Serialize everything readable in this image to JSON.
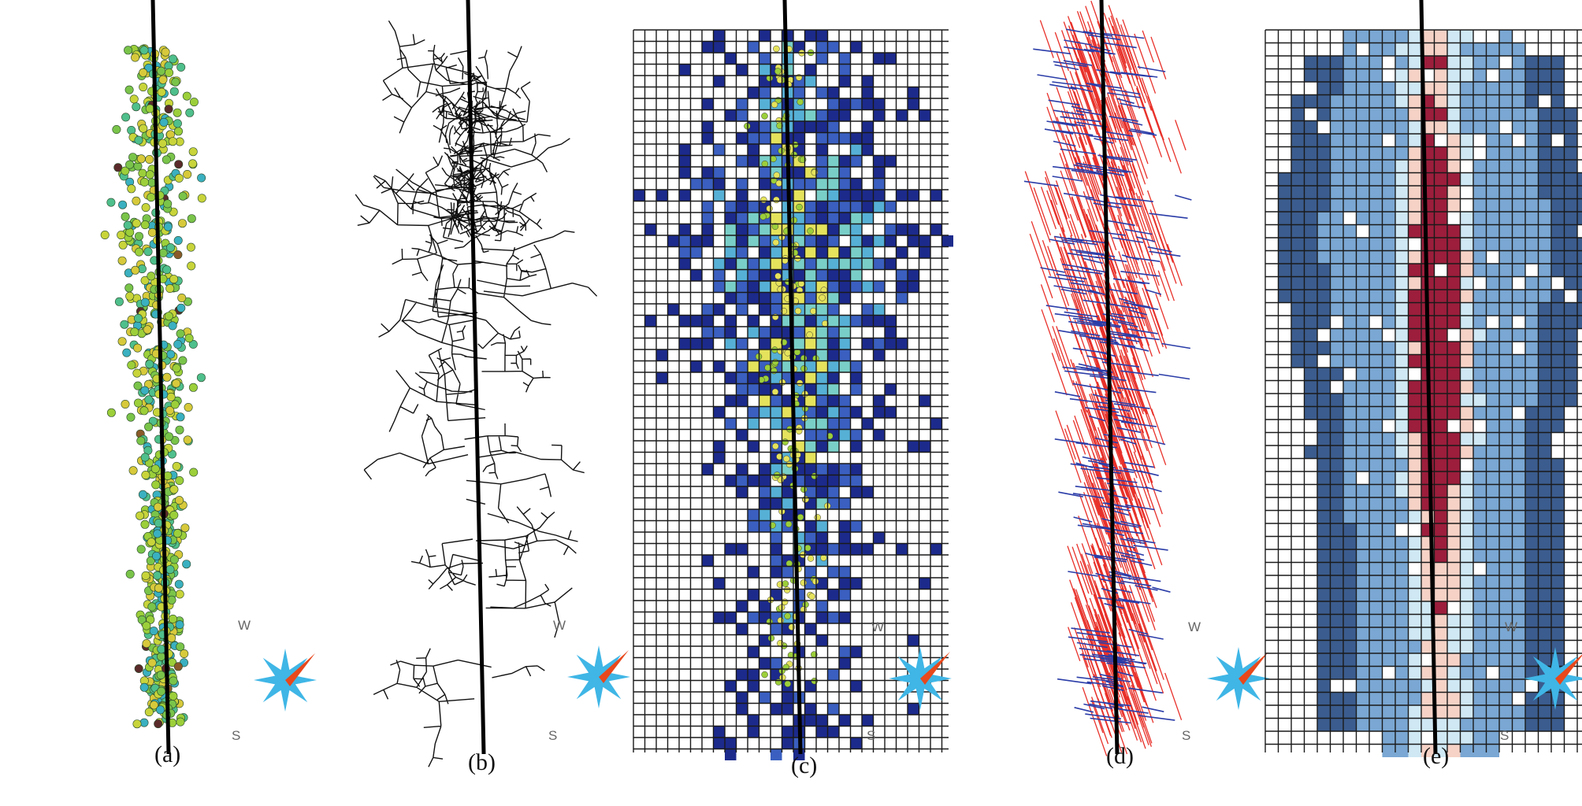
{
  "figure": {
    "panels": [
      {
        "id": "a",
        "label": "(a)",
        "content": "microseismic-events"
      },
      {
        "id": "b",
        "label": "(b)",
        "content": "fracture-network"
      },
      {
        "id": "c",
        "label": "(c)",
        "content": "event-density-grid"
      },
      {
        "id": "d",
        "label": "(d)",
        "content": "fracture-orientation-segments"
      },
      {
        "id": "e",
        "label": "(e)",
        "content": "stimulated-volume-grid"
      }
    ],
    "compass": {
      "west_label": "W",
      "south_label": "S"
    },
    "colors": {
      "compass_blue": "#3fb6e6",
      "compass_needle": "#e8481c",
      "wellbore": "#000000",
      "grid_line": "#1a1a1a",
      "fracture_red": "#e8312a",
      "fracture_blue": "#2b3da8",
      "density_scale": [
        "#1c2a8c",
        "#3a5fc0",
        "#56b0d6",
        "#79cfc8",
        "#e5e35c",
        "#8b1a2a"
      ],
      "srv_scale": [
        "#3b5c8e",
        "#7aa7d3",
        "#cfe8f4",
        "#f6d2c6",
        "#9c1e3c"
      ]
    }
  }
}
